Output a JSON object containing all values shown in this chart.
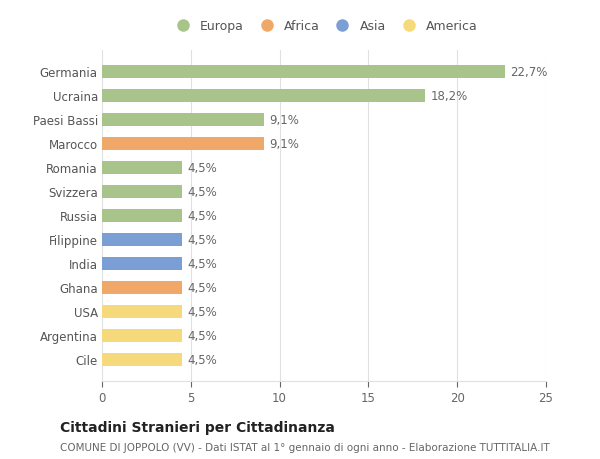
{
  "categories": [
    "Cile",
    "Argentina",
    "USA",
    "Ghana",
    "India",
    "Filippine",
    "Russia",
    "Svizzera",
    "Romania",
    "Marocco",
    "Paesi Bassi",
    "Ucraina",
    "Germania"
  ],
  "values": [
    4.5,
    4.5,
    4.5,
    4.5,
    4.5,
    4.5,
    4.5,
    4.5,
    4.5,
    9.1,
    9.1,
    18.2,
    22.7
  ],
  "labels": [
    "4,5%",
    "4,5%",
    "4,5%",
    "4,5%",
    "4,5%",
    "4,5%",
    "4,5%",
    "4,5%",
    "4,5%",
    "9,1%",
    "9,1%",
    "18,2%",
    "22,7%"
  ],
  "colors": [
    "#f5d97a",
    "#f5d97a",
    "#f5d97a",
    "#f0a868",
    "#7b9fd4",
    "#7b9fd4",
    "#a8c48a",
    "#a8c48a",
    "#a8c48a",
    "#f0a868",
    "#a8c48a",
    "#a8c48a",
    "#a8c48a"
  ],
  "legend_labels": [
    "Europa",
    "Africa",
    "Asia",
    "America"
  ],
  "legend_colors": [
    "#a8c48a",
    "#f0a868",
    "#7b9fd4",
    "#f5d97a"
  ],
  "title": "Cittadini Stranieri per Cittadinanza",
  "subtitle": "COMUNE DI JOPPOLO (VV) - Dati ISTAT al 1° gennaio di ogni anno - Elaborazione TUTTITALIA.IT",
  "xlim": [
    0,
    25
  ],
  "xticks": [
    0,
    5,
    10,
    15,
    20,
    25
  ],
  "bg_color": "#ffffff",
  "grid_color": "#e0e0e0",
  "label_fontsize": 8.5,
  "tick_fontsize": 8.5,
  "title_fontsize": 10,
  "subtitle_fontsize": 7.5,
  "bar_height": 0.55
}
